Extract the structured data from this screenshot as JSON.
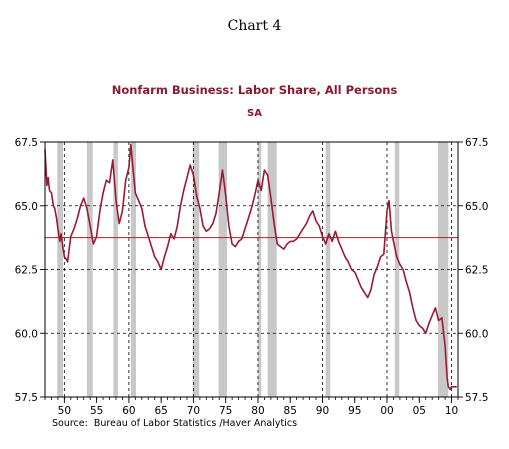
{
  "chart_number": "Chart 4",
  "source": "Source:  Bureau of Labor Statistics /Haver Analytics",
  "colors": {
    "series": "#9a1b30",
    "reference_line": "#b0192f",
    "recession": "#c8c8c8",
    "grid": "#000000",
    "title": "#8b1a2e"
  },
  "chart_data": {
    "type": "line",
    "title": "Nonfarm Business: Labor Share, All Persons",
    "subtitle": "SA",
    "xlabel": "",
    "ylabel": "",
    "xlim": [
      1947,
      2011
    ],
    "ylim": [
      57.5,
      67.5
    ],
    "x_ticks": [
      1950,
      1955,
      1960,
      1965,
      1970,
      1975,
      1980,
      1985,
      1990,
      1995,
      2000,
      2005,
      2010
    ],
    "x_tick_labels": [
      "50",
      "55",
      "60",
      "65",
      "70",
      "75",
      "80",
      "85",
      "90",
      "95",
      "00",
      "05",
      "10"
    ],
    "y_ticks": [
      57.5,
      60.0,
      62.5,
      65.0,
      67.5
    ],
    "y_tick_labels": [
      "57.5",
      "60.0",
      "62.5",
      "65.0",
      "67.5"
    ],
    "dashed_grid_x": [
      1950,
      1960,
      1970,
      1980,
      1990,
      2000,
      2010
    ],
    "dashed_grid_y": [
      60.0,
      62.5,
      65.0
    ],
    "reference_line_y": 63.75,
    "recessions": [
      [
        1948.9,
        1949.8
      ],
      [
        1953.5,
        1954.4
      ],
      [
        1957.6,
        1958.3
      ],
      [
        1960.3,
        1961.1
      ],
      [
        1969.9,
        1970.9
      ],
      [
        1973.9,
        1975.2
      ],
      [
        1980.0,
        1980.5
      ],
      [
        1981.5,
        1982.9
      ],
      [
        1990.5,
        1991.2
      ],
      [
        2001.2,
        2001.9
      ],
      [
        2007.9,
        2009.5
      ]
    ],
    "series": [
      {
        "x": [
          1947.0,
          1947.3,
          1947.5,
          1947.7,
          1948.0,
          1948.3,
          1948.5,
          1948.8,
          1949.0,
          1949.3,
          1949.5,
          1949.8,
          1950.0,
          1950.3,
          1950.5,
          1950.8,
          1951.0,
          1951.5,
          1952.0,
          1952.5,
          1953.0,
          1953.5,
          1954.0,
          1954.5,
          1955.0,
          1955.5,
          1956.0,
          1956.5,
          1957.0,
          1957.5,
          1958.0,
          1958.5,
          1959.0,
          1959.5,
          1960.0,
          1960.3,
          1960.7,
          1961.0,
          1961.5,
          1962.0,
          1962.5,
          1963.0,
          1963.5,
          1964.0,
          1964.5,
          1965.0,
          1965.5,
          1966.0,
          1966.5,
          1967.0,
          1967.5,
          1968.0,
          1968.5,
          1969.0,
          1969.5,
          1970.0,
          1970.5,
          1971.0,
          1971.5,
          1972.0,
          1972.5,
          1973.0,
          1973.5,
          1974.0,
          1974.5,
          1975.0,
          1975.5,
          1976.0,
          1976.5,
          1977.0,
          1977.5,
          1978.0,
          1978.5,
          1979.0,
          1979.5,
          1980.0,
          1980.5,
          1981.0,
          1981.5,
          1982.0,
          1982.5,
          1983.0,
          1983.5,
          1984.0,
          1984.5,
          1985.0,
          1985.5,
          1986.0,
          1986.5,
          1987.0,
          1987.5,
          1988.0,
          1988.5,
          1989.0,
          1989.5,
          1990.0,
          1990.5,
          1991.0,
          1991.5,
          1992.0,
          1992.5,
          1993.0,
          1993.5,
          1994.0,
          1994.5,
          1995.0,
          1995.5,
          1996.0,
          1996.5,
          1997.0,
          1997.5,
          1998.0,
          1998.5,
          1999.0,
          1999.5,
          2000.0,
          2000.3,
          2000.7,
          2001.0,
          2001.5,
          2002.0,
          2002.5,
          2003.0,
          2003.5,
          2004.0,
          2004.5,
          2005.0,
          2005.5,
          2006.0,
          2006.5,
          2007.0,
          2007.5,
          2008.0,
          2008.5,
          2009.0,
          2009.3,
          2009.5,
          2009.8,
          2010.0,
          2010.3,
          2010.5,
          2010.8
        ],
        "y": [
          67.2,
          65.8,
          66.1,
          65.6,
          65.5,
          65.0,
          64.9,
          64.5,
          64.1,
          63.6,
          63.9,
          63.3,
          63.0,
          62.9,
          62.8,
          63.4,
          63.8,
          64.1,
          64.5,
          65.0,
          65.3,
          64.9,
          64.2,
          63.5,
          63.8,
          64.8,
          65.5,
          66.0,
          65.9,
          66.8,
          65.2,
          64.3,
          64.8,
          66.0,
          66.5,
          67.4,
          66.3,
          65.5,
          65.2,
          64.9,
          64.2,
          63.8,
          63.4,
          63.0,
          62.8,
          62.5,
          63.0,
          63.4,
          63.9,
          63.7,
          64.2,
          65.0,
          65.6,
          66.1,
          66.6,
          66.2,
          65.4,
          64.9,
          64.2,
          64.0,
          64.1,
          64.3,
          64.7,
          65.5,
          66.4,
          65.4,
          64.2,
          63.5,
          63.4,
          63.6,
          63.7,
          64.1,
          64.5,
          64.9,
          65.4,
          66.0,
          65.6,
          66.4,
          66.2,
          65.3,
          64.3,
          63.5,
          63.4,
          63.3,
          63.5,
          63.6,
          63.6,
          63.7,
          63.9,
          64.1,
          64.3,
          64.6,
          64.8,
          64.4,
          64.2,
          63.8,
          63.5,
          63.9,
          63.6,
          64.0,
          63.6,
          63.3,
          63.0,
          62.8,
          62.5,
          62.4,
          62.1,
          61.8,
          61.6,
          61.4,
          61.7,
          62.3,
          62.6,
          63.0,
          63.1,
          64.8,
          65.2,
          64.0,
          63.6,
          63.0,
          62.7,
          62.5,
          62.0,
          61.6,
          61.0,
          60.5,
          60.3,
          60.2,
          60.0,
          60.4,
          60.7,
          61.0,
          60.5,
          60.6,
          59.5,
          58.3,
          57.9,
          57.8,
          57.9,
          57.9,
          57.9,
          57.9
        ]
      }
    ]
  }
}
